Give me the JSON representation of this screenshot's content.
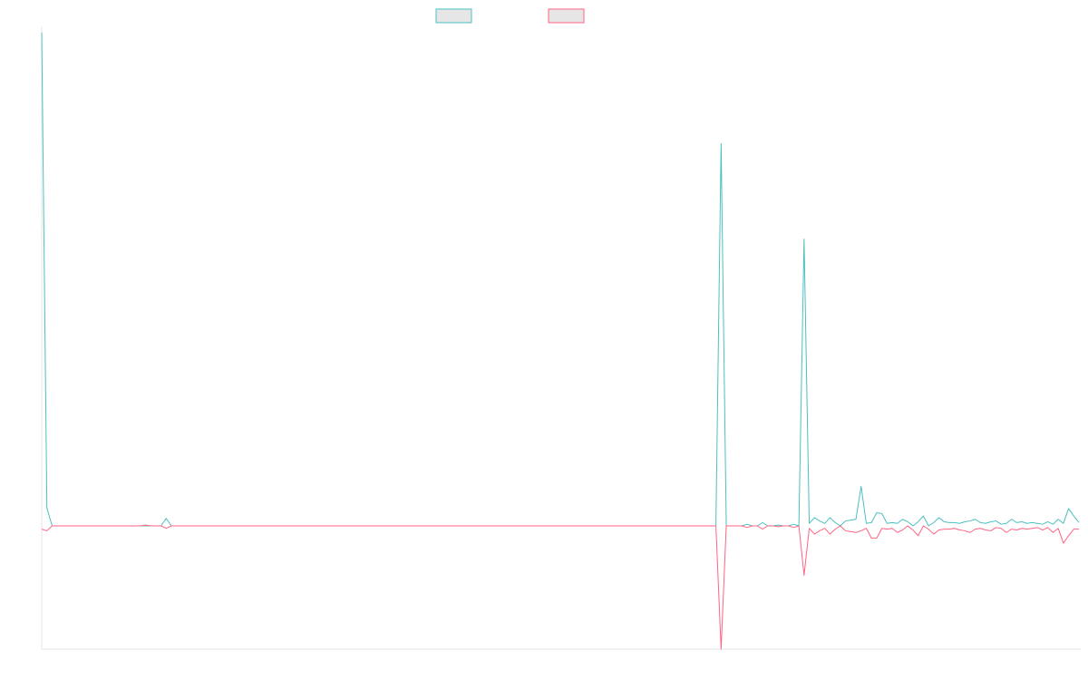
{
  "chart_data": {
    "type": "line",
    "title": "",
    "xlabel": "",
    "ylabel": "",
    "grid": false,
    "legend_placement": "top-center",
    "xlim": [
      0,
      200
    ],
    "ylim": [
      -15,
      60
    ],
    "series": [
      {
        "color": "#4bc0c0",
        "points": [
          [
            0,
            60
          ],
          [
            1,
            2.2
          ],
          [
            2,
            0
          ],
          [
            3,
            0
          ],
          [
            4,
            0
          ],
          [
            5,
            0
          ],
          [
            6,
            0
          ],
          [
            7,
            0
          ],
          [
            8,
            0
          ],
          [
            9,
            0
          ],
          [
            10,
            0
          ],
          [
            11,
            0
          ],
          [
            12,
            0
          ],
          [
            13,
            0
          ],
          [
            14,
            0
          ],
          [
            15,
            0
          ],
          [
            16,
            0
          ],
          [
            17,
            0
          ],
          [
            18,
            0
          ],
          [
            19,
            0
          ],
          [
            20,
            0
          ],
          [
            21,
            0
          ],
          [
            22,
            0
          ],
          [
            23,
            0
          ],
          [
            24,
            0.9
          ],
          [
            25,
            0
          ],
          [
            26,
            0
          ],
          [
            27,
            0
          ],
          [
            28,
            0
          ],
          [
            29,
            0
          ],
          [
            30,
            0
          ],
          [
            35,
            0
          ],
          [
            40,
            0
          ],
          [
            45,
            0
          ],
          [
            50,
            0
          ],
          [
            60,
            0
          ],
          [
            70,
            0
          ],
          [
            80,
            0
          ],
          [
            90,
            0
          ],
          [
            100,
            0
          ],
          [
            110,
            0
          ],
          [
            120,
            0
          ],
          [
            130,
            0
          ],
          [
            131,
            46.5
          ],
          [
            132,
            0
          ],
          [
            133,
            0
          ],
          [
            134,
            0
          ],
          [
            135,
            0
          ],
          [
            136,
            0.2
          ],
          [
            137,
            0
          ],
          [
            138,
            0
          ],
          [
            139,
            0.4
          ],
          [
            140,
            0
          ],
          [
            141,
            0
          ],
          [
            142,
            0.1
          ],
          [
            143,
            0
          ],
          [
            144,
            0
          ],
          [
            145,
            0.2
          ],
          [
            146,
            0
          ],
          [
            147,
            34.9
          ],
          [
            148,
            0.3
          ],
          [
            149,
            1
          ],
          [
            150,
            0.6
          ],
          [
            151,
            0.3
          ],
          [
            152,
            1
          ],
          [
            153,
            0.4
          ],
          [
            154,
            0
          ],
          [
            155,
            0.6
          ],
          [
            156,
            0.7
          ],
          [
            157,
            0.8
          ],
          [
            158,
            4.8
          ],
          [
            159,
            0.3
          ],
          [
            160,
            0.4
          ],
          [
            161,
            1.6
          ],
          [
            162,
            1.5
          ],
          [
            163,
            0.3
          ],
          [
            164,
            0.4
          ],
          [
            165,
            0.3
          ],
          [
            166,
            0.8
          ],
          [
            167,
            0.5
          ],
          [
            168,
            0
          ],
          [
            169,
            0.5
          ],
          [
            170,
            1.2
          ],
          [
            171,
            0
          ],
          [
            172,
            0.4
          ],
          [
            173,
            1
          ],
          [
            174,
            0.5
          ],
          [
            175,
            0.4
          ],
          [
            176,
            0.4
          ],
          [
            177,
            0.3
          ],
          [
            178,
            0.5
          ],
          [
            179,
            0.6
          ],
          [
            180,
            0.8
          ],
          [
            181,
            0.4
          ],
          [
            182,
            0.3
          ],
          [
            183,
            0.5
          ],
          [
            184,
            0.6
          ],
          [
            185,
            0.2
          ],
          [
            186,
            0.3
          ],
          [
            187,
            0.8
          ],
          [
            188,
            0.4
          ],
          [
            189,
            0.5
          ],
          [
            190,
            0.3
          ],
          [
            191,
            0.4
          ],
          [
            192,
            0.3
          ],
          [
            193,
            0.2
          ],
          [
            194,
            0.5
          ],
          [
            195,
            0.2
          ],
          [
            196,
            0.8
          ],
          [
            197,
            0.3
          ],
          [
            198,
            2.1
          ],
          [
            199,
            1.2
          ],
          [
            200,
            0.4
          ]
        ]
      },
      {
        "color": "#ff6384",
        "points": [
          [
            0,
            -0.4
          ],
          [
            1,
            -0.6
          ],
          [
            2,
            0
          ],
          [
            3,
            0
          ],
          [
            4,
            0
          ],
          [
            5,
            0
          ],
          [
            6,
            0
          ],
          [
            7,
            0
          ],
          [
            8,
            0
          ],
          [
            9,
            0
          ],
          [
            10,
            0
          ],
          [
            11,
            0
          ],
          [
            12,
            0
          ],
          [
            13,
            0
          ],
          [
            14,
            0
          ],
          [
            15,
            0
          ],
          [
            16,
            0
          ],
          [
            17,
            0
          ],
          [
            18,
            0
          ],
          [
            19,
            0
          ],
          [
            20,
            0.1
          ],
          [
            21,
            0
          ],
          [
            22,
            0
          ],
          [
            23,
            0
          ],
          [
            24,
            -0.3
          ],
          [
            25,
            0
          ],
          [
            26,
            0
          ],
          [
            27,
            0
          ],
          [
            28,
            0
          ],
          [
            29,
            0
          ],
          [
            30,
            0
          ],
          [
            35,
            0
          ],
          [
            40,
            0
          ],
          [
            45,
            0
          ],
          [
            50,
            0
          ],
          [
            60,
            0
          ],
          [
            70,
            0
          ],
          [
            80,
            0
          ],
          [
            90,
            0
          ],
          [
            100,
            0
          ],
          [
            110,
            0
          ],
          [
            120,
            0
          ],
          [
            130,
            0
          ],
          [
            131,
            -15
          ],
          [
            132,
            0
          ],
          [
            133,
            0
          ],
          [
            134,
            0
          ],
          [
            135,
            0
          ],
          [
            136,
            -0.2
          ],
          [
            137,
            0
          ],
          [
            138,
            0
          ],
          [
            139,
            -0.4
          ],
          [
            140,
            0
          ],
          [
            141,
            0
          ],
          [
            142,
            -0.1
          ],
          [
            143,
            0
          ],
          [
            144,
            0
          ],
          [
            145,
            -0.2
          ],
          [
            146,
            0
          ],
          [
            147,
            -6
          ],
          [
            148,
            -0.3
          ],
          [
            149,
            -1
          ],
          [
            150,
            -0.6
          ],
          [
            151,
            -0.3
          ],
          [
            152,
            -1
          ],
          [
            153,
            -0.4
          ],
          [
            154,
            0
          ],
          [
            155,
            -0.6
          ],
          [
            156,
            -0.7
          ],
          [
            157,
            -0.8
          ],
          [
            158,
            -0.6
          ],
          [
            159,
            -0.3
          ],
          [
            160,
            -1.5
          ],
          [
            161,
            -1.5
          ],
          [
            162,
            -0.3
          ],
          [
            163,
            -0.4
          ],
          [
            164,
            -0.3
          ],
          [
            165,
            -0.8
          ],
          [
            166,
            -0.5
          ],
          [
            167,
            0
          ],
          [
            168,
            -0.5
          ],
          [
            169,
            -1.2
          ],
          [
            170,
            0
          ],
          [
            171,
            -0.4
          ],
          [
            172,
            -1
          ],
          [
            173,
            -0.5
          ],
          [
            174,
            -0.4
          ],
          [
            175,
            -0.4
          ],
          [
            176,
            -0.3
          ],
          [
            177,
            -0.5
          ],
          [
            178,
            -0.6
          ],
          [
            179,
            -0.8
          ],
          [
            180,
            -0.4
          ],
          [
            181,
            -0.3
          ],
          [
            182,
            -0.5
          ],
          [
            183,
            -0.6
          ],
          [
            184,
            -0.2
          ],
          [
            185,
            -0.3
          ],
          [
            186,
            -0.8
          ],
          [
            187,
            -0.4
          ],
          [
            188,
            -0.5
          ],
          [
            189,
            -0.3
          ],
          [
            190,
            -0.4
          ],
          [
            191,
            -0.3
          ],
          [
            192,
            -0.2
          ],
          [
            193,
            -0.5
          ],
          [
            194,
            -0.2
          ],
          [
            195,
            -0.8
          ],
          [
            196,
            -0.3
          ],
          [
            197,
            -2.1
          ],
          [
            198,
            -1.2
          ],
          [
            199,
            -0.4
          ],
          [
            200,
            -0.4
          ]
        ]
      }
    ]
  }
}
